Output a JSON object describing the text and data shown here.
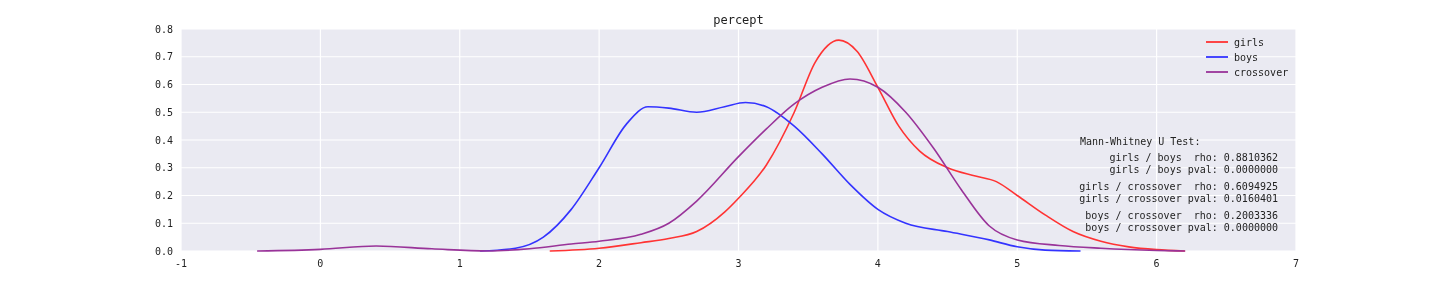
{
  "chart_data": {
    "type": "line",
    "title": "percept",
    "legend": "top right",
    "grid": true,
    "xlim": [
      -1,
      7
    ],
    "xticks": [
      -1,
      0,
      1,
      2,
      3,
      4,
      5,
      6,
      7
    ],
    "ylim": [
      0,
      0.8
    ],
    "yticks": [
      {
        "value": 0,
        "label": "0.0"
      },
      {
        "value": 0.1,
        "label": "0.1"
      },
      {
        "value": 0.2,
        "label": "0.2"
      },
      {
        "value": 0.3,
        "label": "0.3"
      },
      {
        "value": 0.4,
        "label": "0.4"
      },
      {
        "value": 0.5,
        "label": "0.5"
      },
      {
        "value": 0.6,
        "label": "0.6"
      },
      {
        "value": 0.7,
        "label": "0.7"
      },
      {
        "value": 0.8,
        "label": "0.8"
      }
    ],
    "series": [
      {
        "name": "girls",
        "color": "#ff3333",
        "x": [
          1.65,
          2,
          2.3,
          2.5,
          2.7,
          2.9,
          3,
          3.2,
          3.4,
          3.55,
          3.72,
          3.85,
          4,
          4.15,
          4.3,
          4.5,
          4.7,
          4.85,
          5,
          5.2,
          5.4,
          5.6,
          5.8,
          6,
          6.2
        ],
        "values": [
          0,
          0.01,
          0.03,
          0.045,
          0.07,
          0.14,
          0.19,
          0.31,
          0.5,
          0.68,
          0.76,
          0.72,
          0.59,
          0.45,
          0.36,
          0.3,
          0.27,
          0.25,
          0.2,
          0.13,
          0.07,
          0.035,
          0.015,
          0.005,
          0
        ]
      },
      {
        "name": "boys",
        "color": "#3333ff",
        "x": [
          1.15,
          1.4,
          1.6,
          1.8,
          2,
          2.2,
          2.35,
          2.5,
          2.7,
          2.9,
          3.05,
          3.2,
          3.4,
          3.6,
          3.8,
          4,
          4.2,
          4.5,
          4.8,
          5,
          5.2,
          5.45
        ],
        "values": [
          0,
          0.01,
          0.05,
          0.15,
          0.3,
          0.46,
          0.52,
          0.515,
          0.5,
          0.52,
          0.535,
          0.52,
          0.45,
          0.35,
          0.24,
          0.15,
          0.1,
          0.07,
          0.04,
          0.015,
          0.003,
          0
        ]
      },
      {
        "name": "crossover",
        "color": "#993399",
        "x": [
          -0.45,
          0,
          0.4,
          0.8,
          1.2,
          1.5,
          1.8,
          2,
          2.3,
          2.5,
          2.7,
          3,
          3.2,
          3.4,
          3.6,
          3.8,
          4,
          4.2,
          4.4,
          4.6,
          4.8,
          5,
          5.3,
          5.6,
          6,
          6.2
        ],
        "values": [
          0,
          0.006,
          0.018,
          0.008,
          0,
          0.008,
          0.025,
          0.035,
          0.06,
          0.1,
          0.18,
          0.34,
          0.44,
          0.53,
          0.59,
          0.62,
          0.59,
          0.5,
          0.37,
          0.22,
          0.09,
          0.04,
          0.02,
          0.01,
          0.002,
          0
        ]
      }
    ],
    "annotations": [
      "Mann-Whitney U Test:",
      "girls / boys  rho: 0.8810362",
      "girls / boys pval: 0.0000000",
      "girls / crossover  rho: 0.6094925",
      "girls / crossover pval: 0.0160401",
      "boys / crossover  rho: 0.2003336",
      "boys / crossover pval: 0.0000000"
    ]
  }
}
